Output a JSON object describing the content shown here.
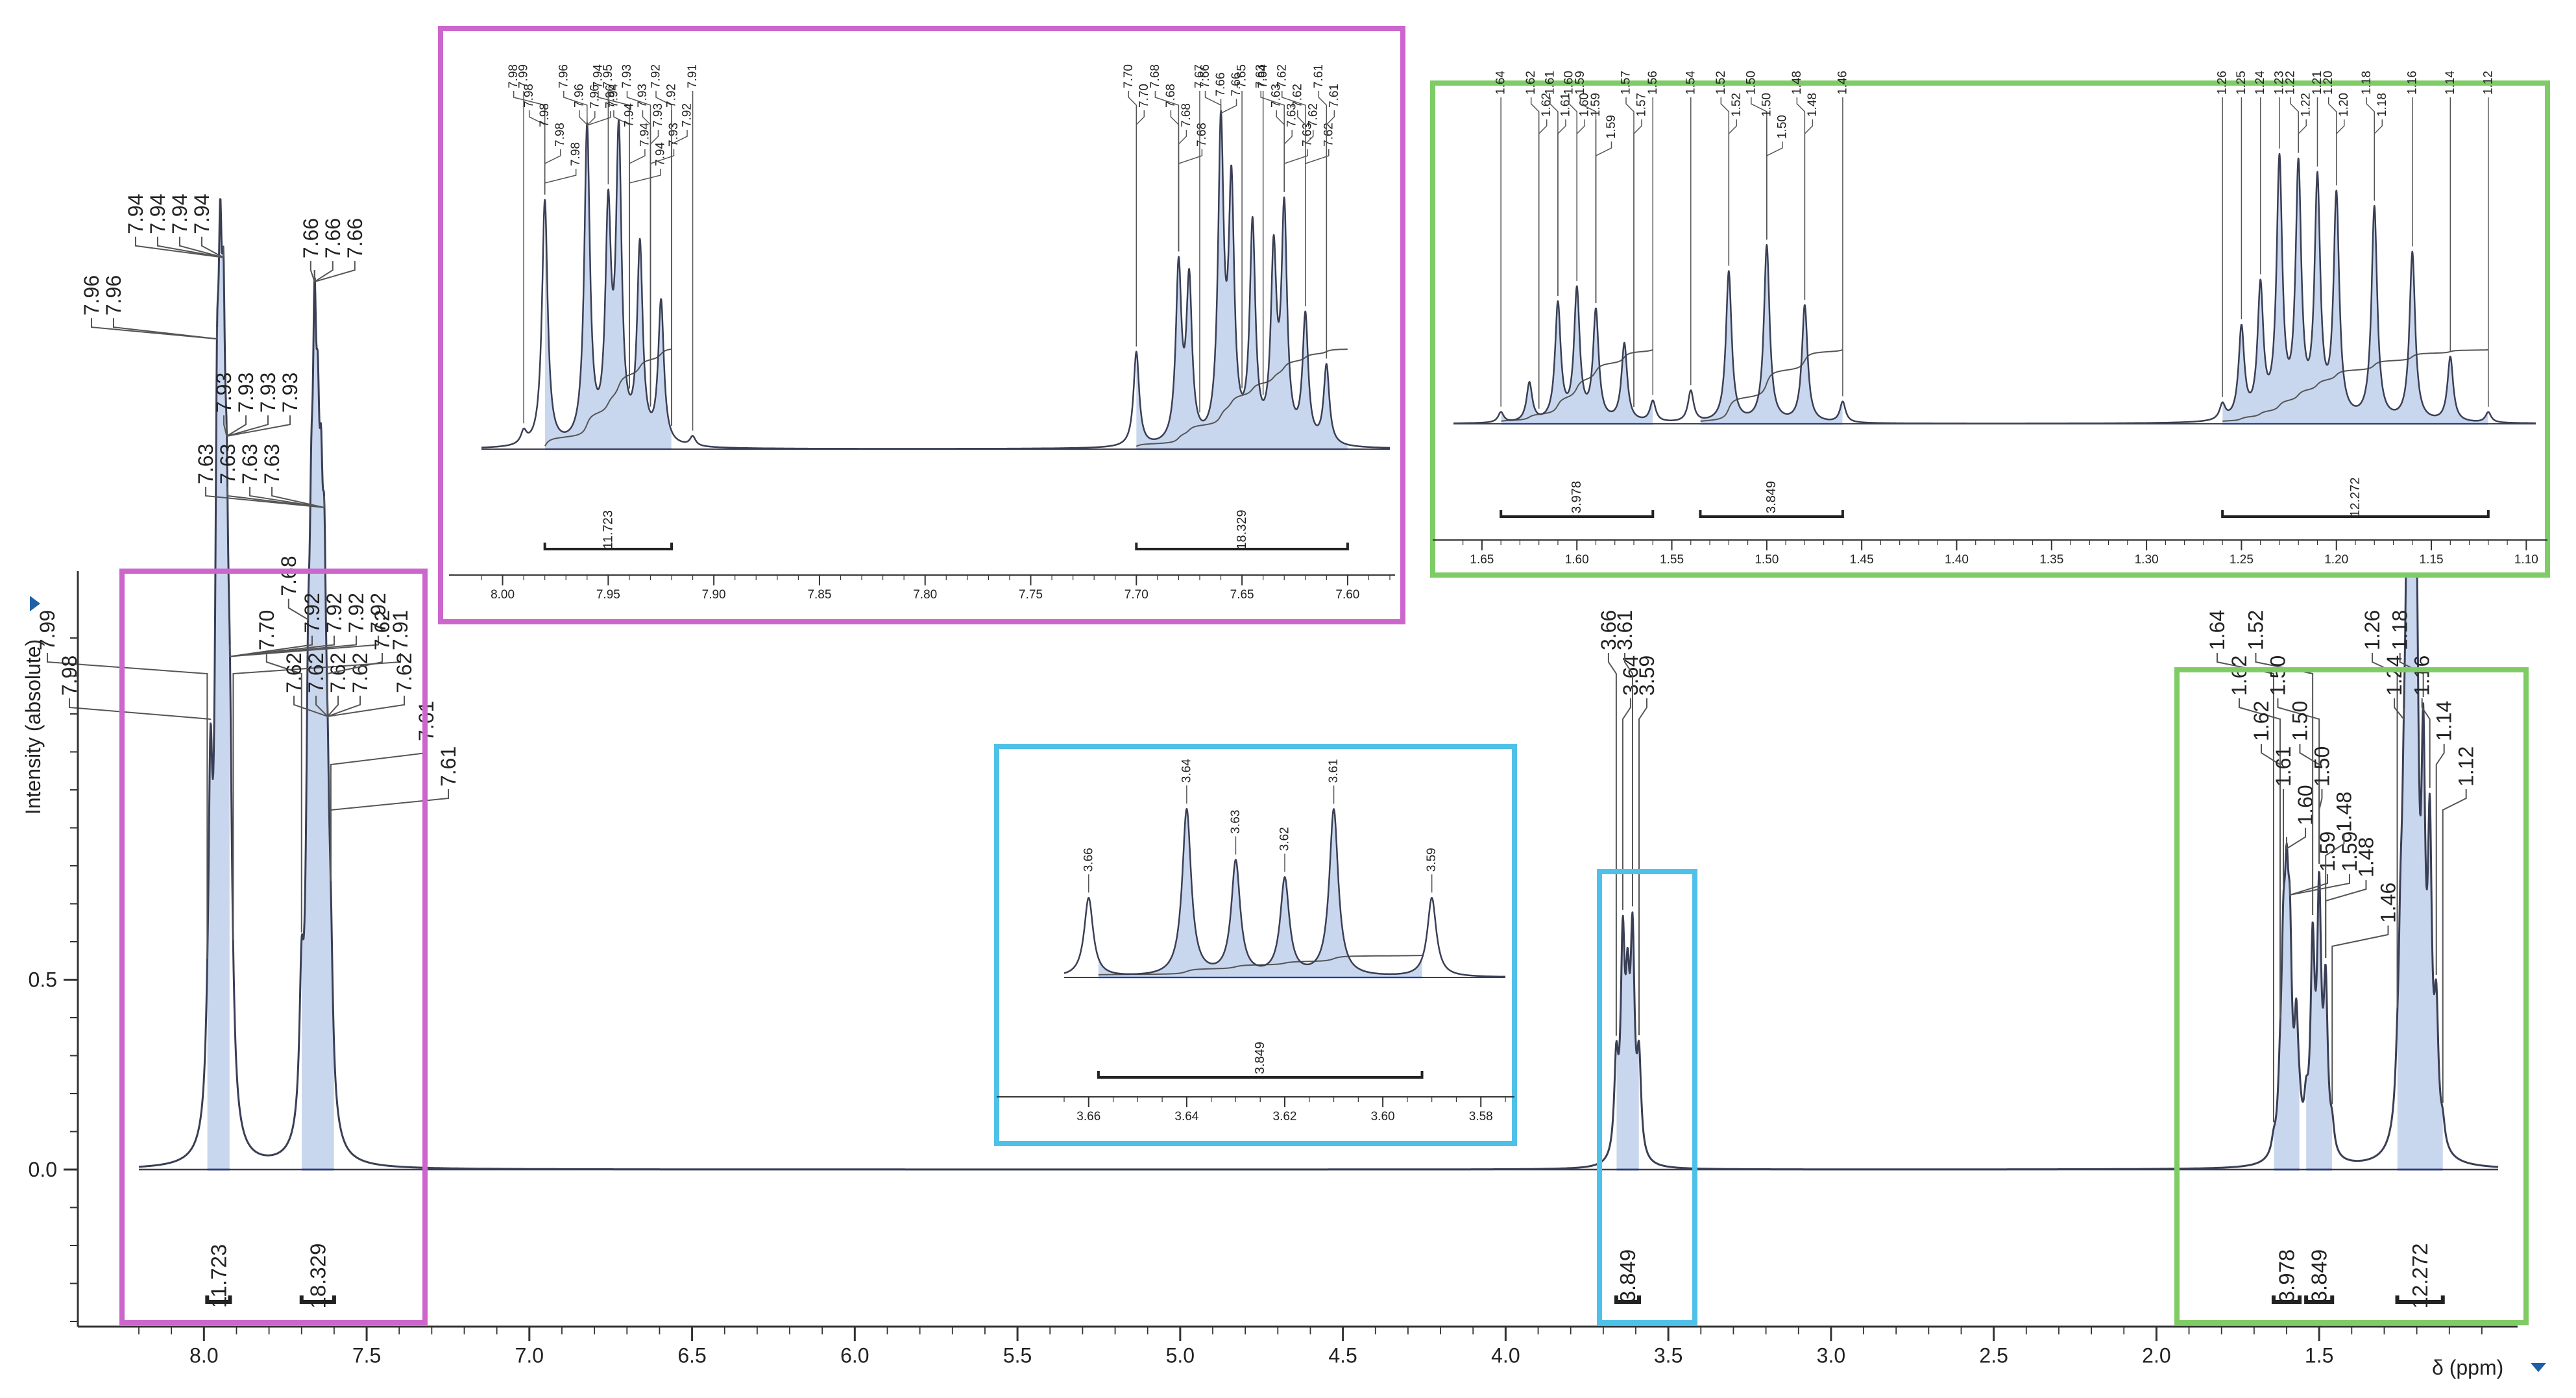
{
  "colors": {
    "line": "#3a3f55",
    "integral_fill": "#c9d7ee",
    "integral_edge": "#5a73c8",
    "magenta_box": "#cc66cc",
    "blue_box": "#4fc1e9",
    "green_box": "#7fcc66",
    "axis": "#333333",
    "marker": "#1f5fa8"
  },
  "chart_data": [
    {
      "type": "line",
      "id": "main",
      "xlabel": "δ (ppm)",
      "ylabel": "Intensity (absolute)",
      "xlim": [
        8.2,
        0.95
      ],
      "ylim": [
        -0.42,
        1.5
      ],
      "x_ticks": [
        "8.0",
        "7.5",
        "7.0",
        "6.5",
        "6.0",
        "5.5",
        "5.0",
        "4.5",
        "4.0",
        "3.5",
        "3.0",
        "2.5",
        "2.0",
        "1.5"
      ],
      "y_ticks": [
        "0.0",
        "0.5"
      ],
      "peaks": [
        {
          "ppm": 7.99,
          "h": 0.06
        },
        {
          "ppm": 7.98,
          "h": 0.82
        },
        {
          "ppm": 7.96,
          "h": 1.35
        },
        {
          "ppm": 7.95,
          "h": 1.4
        },
        {
          "ppm": 7.94,
          "h": 1.28
        },
        {
          "ppm": 7.93,
          "h": 0.95
        },
        {
          "ppm": 7.92,
          "h": 0.7
        },
        {
          "ppm": 7.91,
          "h": 0.05
        },
        {
          "ppm": 7.7,
          "h": 0.35
        },
        {
          "ppm": 7.68,
          "h": 0.8
        },
        {
          "ppm": 7.67,
          "h": 0.9
        },
        {
          "ppm": 7.66,
          "h": 1.36
        },
        {
          "ppm": 7.65,
          "h": 1.0
        },
        {
          "ppm": 7.64,
          "h": 0.92
        },
        {
          "ppm": 7.63,
          "h": 0.95
        },
        {
          "ppm": 7.62,
          "h": 0.5
        },
        {
          "ppm": 7.61,
          "h": 0.3
        },
        {
          "ppm": 3.66,
          "h": 0.24
        },
        {
          "ppm": 3.64,
          "h": 0.53
        },
        {
          "ppm": 3.625,
          "h": 0.35
        },
        {
          "ppm": 3.61,
          "h": 0.54
        },
        {
          "ppm": 3.59,
          "h": 0.24
        },
        {
          "ppm": 1.64,
          "h": 0.03
        },
        {
          "ppm": 1.62,
          "h": 0.12
        },
        {
          "ppm": 1.61,
          "h": 0.42
        },
        {
          "ppm": 1.6,
          "h": 0.5
        },
        {
          "ppm": 1.59,
          "h": 0.44
        },
        {
          "ppm": 1.57,
          "h": 0.3
        },
        {
          "ppm": 1.56,
          "h": 0.05
        },
        {
          "ppm": 1.54,
          "h": 0.1
        },
        {
          "ppm": 1.52,
          "h": 0.52
        },
        {
          "ppm": 1.5,
          "h": 0.65
        },
        {
          "ppm": 1.48,
          "h": 0.42
        },
        {
          "ppm": 1.46,
          "h": 0.06
        },
        {
          "ppm": 1.26,
          "h": 0.08
        },
        {
          "ppm": 1.25,
          "h": 0.35
        },
        {
          "ppm": 1.24,
          "h": 0.45
        },
        {
          "ppm": 1.23,
          "h": 1.05
        },
        {
          "ppm": 1.22,
          "h": 1.0
        },
        {
          "ppm": 1.21,
          "h": 0.95
        },
        {
          "ppm": 1.2,
          "h": 0.95
        },
        {
          "ppm": 1.18,
          "h": 0.88
        },
        {
          "ppm": 1.16,
          "h": 0.75
        },
        {
          "ppm": 1.14,
          "h": 0.32
        },
        {
          "ppm": 1.12,
          "h": 0.05
        }
      ],
      "peak_labels": [
        "7.99",
        "7.98",
        "7.96",
        "7.96",
        "7.94",
        "7.94",
        "7.94",
        "7.94",
        "7.93",
        "7.93",
        "7.93",
        "7.93",
        "7.92",
        "7.92",
        "7.92",
        "7.92",
        "7.91",
        "7.70",
        "7.68",
        "7.66",
        "7.66",
        "7.66",
        "7.63",
        "7.63",
        "7.63",
        "7.63",
        "7.62",
        "7.62",
        "7.62",
        "7.62",
        "7.62",
        "7.62",
        "7.61",
        "7.61",
        "3.66",
        "3.64",
        "3.61",
        "3.59",
        "1.64",
        "1.62",
        "1.62",
        "1.61",
        "1.60",
        "1.59",
        "1.59",
        "1.52",
        "1.50",
        "1.50",
        "1.50",
        "1.48",
        "1.48",
        "1.46",
        "1.26",
        "1.24",
        "1.23",
        "1.21",
        "1.18",
        "1.16",
        "1.14",
        "1.12"
      ],
      "integrals": [
        {
          "from": 7.99,
          "to": 7.92,
          "value": "11.723"
        },
        {
          "from": 7.7,
          "to": 7.6,
          "value": "18.329"
        },
        {
          "from": 3.66,
          "to": 3.59,
          "value": "3.849"
        },
        {
          "from": 1.64,
          "to": 1.56,
          "value": "3.978"
        },
        {
          "from": 1.54,
          "to": 1.46,
          "value": "3.849"
        },
        {
          "from": 1.26,
          "to": 1.12,
          "value": "12.272"
        }
      ]
    },
    {
      "type": "line",
      "id": "inset_aromatic",
      "xlim": [
        8.01,
        7.58
      ],
      "x_ticks": [
        "8.00",
        "7.95",
        "7.90",
        "7.85",
        "7.80",
        "7.75",
        "7.70",
        "7.65",
        "7.60"
      ],
      "peaks": [
        {
          "ppm": 7.99,
          "h": 0.04
        },
        {
          "ppm": 7.98,
          "h": 0.78
        },
        {
          "ppm": 7.96,
          "h": 1.0
        },
        {
          "ppm": 7.95,
          "h": 0.7
        },
        {
          "ppm": 7.945,
          "h": 0.95
        },
        {
          "ppm": 7.935,
          "h": 0.62
        },
        {
          "ppm": 7.925,
          "h": 0.45
        },
        {
          "ppm": 7.91,
          "h": 0.03
        },
        {
          "ppm": 7.7,
          "h": 0.3
        },
        {
          "ppm": 7.68,
          "h": 0.55
        },
        {
          "ppm": 7.675,
          "h": 0.5
        },
        {
          "ppm": 7.66,
          "h": 0.98
        },
        {
          "ppm": 7.655,
          "h": 0.78
        },
        {
          "ppm": 7.645,
          "h": 0.68
        },
        {
          "ppm": 7.635,
          "h": 0.58
        },
        {
          "ppm": 7.63,
          "h": 0.72
        },
        {
          "ppm": 7.62,
          "h": 0.4
        },
        {
          "ppm": 7.61,
          "h": 0.25
        }
      ],
      "peak_labels": [
        "7.99",
        "7.98",
        "7.98",
        "7.98",
        "7.98",
        "7.98",
        "7.96",
        "7.96",
        "7.96",
        "7.96",
        "7.95",
        "7.94",
        "7.94",
        "7.94",
        "7.94",
        "7.94",
        "7.93",
        "7.93",
        "7.93",
        "7.93",
        "7.92",
        "7.92",
        "7.92",
        "7.91",
        "7.70",
        "7.70",
        "7.68",
        "7.68",
        "7.68",
        "7.68",
        "7.67",
        "7.66",
        "7.66",
        "7.66",
        "7.65",
        "7.64",
        "7.63",
        "7.63",
        "7.63",
        "7.63",
        "7.62",
        "7.62",
        "7.62",
        "7.62",
        "7.61",
        "7.61"
      ],
      "integrals": [
        {
          "from": 7.98,
          "to": 7.92,
          "value": "11.723"
        },
        {
          "from": 7.7,
          "to": 7.6,
          "value": "18.329"
        }
      ]
    },
    {
      "type": "line",
      "id": "inset_methine",
      "xlim": [
        3.665,
        3.575
      ],
      "x_ticks": [
        "3.66",
        "3.64",
        "3.62",
        "3.60",
        "3.58"
      ],
      "peaks": [
        {
          "ppm": 3.66,
          "h": 0.45
        },
        {
          "ppm": 3.64,
          "h": 0.95
        },
        {
          "ppm": 3.63,
          "h": 0.65
        },
        {
          "ppm": 3.62,
          "h": 0.55
        },
        {
          "ppm": 3.61,
          "h": 0.95
        },
        {
          "ppm": 3.59,
          "h": 0.45
        }
      ],
      "peak_labels": [
        "3.66",
        "3.64",
        "3.63",
        "3.62",
        "3.61",
        "3.59"
      ],
      "integrals": [
        {
          "from": 3.658,
          "to": 3.592,
          "value": "3.849"
        }
      ]
    },
    {
      "type": "line",
      "id": "inset_aliphatic",
      "xlim": [
        1.665,
        1.095
      ],
      "x_ticks": [
        "1.65",
        "1.60",
        "1.55",
        "1.50",
        "1.45",
        "1.40",
        "1.35",
        "1.30",
        "1.25",
        "1.20",
        "1.15",
        "1.10"
      ],
      "peaks": [
        {
          "ppm": 1.64,
          "h": 0.04
        },
        {
          "ppm": 1.625,
          "h": 0.15
        },
        {
          "ppm": 1.61,
          "h": 0.45
        },
        {
          "ppm": 1.6,
          "h": 0.5
        },
        {
          "ppm": 1.59,
          "h": 0.42
        },
        {
          "ppm": 1.575,
          "h": 0.3
        },
        {
          "ppm": 1.56,
          "h": 0.08
        },
        {
          "ppm": 1.54,
          "h": 0.12
        },
        {
          "ppm": 1.52,
          "h": 0.58
        },
        {
          "ppm": 1.5,
          "h": 0.68
        },
        {
          "ppm": 1.48,
          "h": 0.45
        },
        {
          "ppm": 1.46,
          "h": 0.08
        },
        {
          "ppm": 1.26,
          "h": 0.06
        },
        {
          "ppm": 1.25,
          "h": 0.35
        },
        {
          "ppm": 1.24,
          "h": 0.5
        },
        {
          "ppm": 1.23,
          "h": 0.98
        },
        {
          "ppm": 1.22,
          "h": 0.95
        },
        {
          "ppm": 1.21,
          "h": 0.9
        },
        {
          "ppm": 1.2,
          "h": 0.85
        },
        {
          "ppm": 1.18,
          "h": 0.82
        },
        {
          "ppm": 1.16,
          "h": 0.65
        },
        {
          "ppm": 1.14,
          "h": 0.25
        },
        {
          "ppm": 1.12,
          "h": 0.04
        }
      ],
      "peak_labels": [
        "1.64",
        "1.62",
        "1.62",
        "1.61",
        "1.61",
        "1.60",
        "1.60",
        "1.59",
        "1.59",
        "1.59",
        "1.57",
        "1.57",
        "1.56",
        "1.54",
        "1.52",
        "1.52",
        "1.50",
        "1.50",
        "1.50",
        "1.48",
        "1.48",
        "1.46",
        "1.26",
        "1.25",
        "1.24",
        "1.23",
        "1.22",
        "1.22",
        "1.21",
        "1.20",
        "1.20",
        "1.18",
        "1.18",
        "1.16",
        "1.14",
        "1.12"
      ],
      "integrals": [
        {
          "from": 1.64,
          "to": 1.56,
          "value": "3.978"
        },
        {
          "from": 1.535,
          "to": 1.46,
          "value": "3.849"
        },
        {
          "from": 1.26,
          "to": 1.12,
          "value": "12.272"
        }
      ]
    }
  ]
}
